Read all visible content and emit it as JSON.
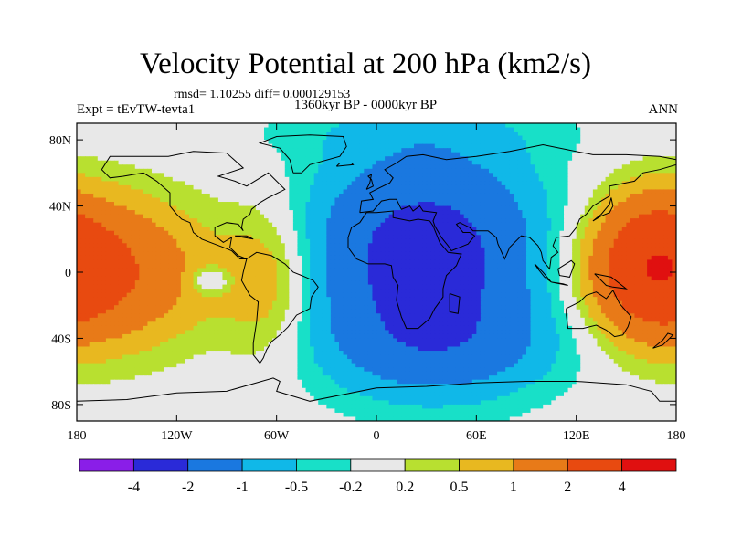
{
  "title": "Velocity Potential at 200 hPa (km2/s)",
  "stats_line": "rmsd= 1.10255 diff= 0.000129153",
  "period": "1360kyr BP - 0000kyr BP",
  "experiment": "Expt = tEvTW-tevta1",
  "season": "ANN",
  "chart_data": {
    "type": "heatmap",
    "projection": "cylindrical equidistant",
    "xlim": [
      -180,
      180
    ],
    "ylim": [
      -90,
      90
    ],
    "x_ticks": [
      {
        "value": -180,
        "label": "180"
      },
      {
        "value": -120,
        "label": "120W"
      },
      {
        "value": -60,
        "label": "60W"
      },
      {
        "value": 0,
        "label": "0"
      },
      {
        "value": 60,
        "label": "60E"
      },
      {
        "value": 120,
        "label": "120E"
      },
      {
        "value": 180,
        "label": "180"
      }
    ],
    "y_ticks": [
      {
        "value": 80,
        "label": "80N"
      },
      {
        "value": 40,
        "label": "40N"
      },
      {
        "value": 0,
        "label": "0"
      },
      {
        "value": -40,
        "label": "40S"
      },
      {
        "value": -80,
        "label": "80S"
      }
    ],
    "contour_levels": [
      -4,
      -2,
      -1,
      -0.5,
      -0.2,
      0.2,
      0.5,
      1,
      2,
      4
    ],
    "level_labels": [
      "-4",
      "-2",
      "-1",
      "-0.5",
      "-0.2",
      "0.2",
      "0.5",
      "1",
      "2",
      "4"
    ],
    "colors": [
      "#8a1ee8",
      "#2a2ad8",
      "#1a78e0",
      "#10b8e8",
      "#18e0c8",
      "#e8e8e8",
      "#b8e030",
      "#e8b820",
      "#e87a18",
      "#e84a10",
      "#e01010"
    ],
    "features": [
      {
        "name": "minimum over Africa / Arabia",
        "lon": 30,
        "lat": 10,
        "value": -2.6
      },
      {
        "name": "maximum over central Pacific",
        "lon": -170,
        "lat": 0,
        "value": 2.3
      },
      {
        "name": "maximum over western Pacific",
        "lon": 165,
        "lat": 5,
        "value": 2.2
      },
      {
        "name": "secondary maximum over South America",
        "lon": -60,
        "lat": -5,
        "value": 1.0
      },
      {
        "name": "local minimum off South America",
        "lon": -100,
        "lat": -5,
        "value": -0.6
      }
    ]
  }
}
